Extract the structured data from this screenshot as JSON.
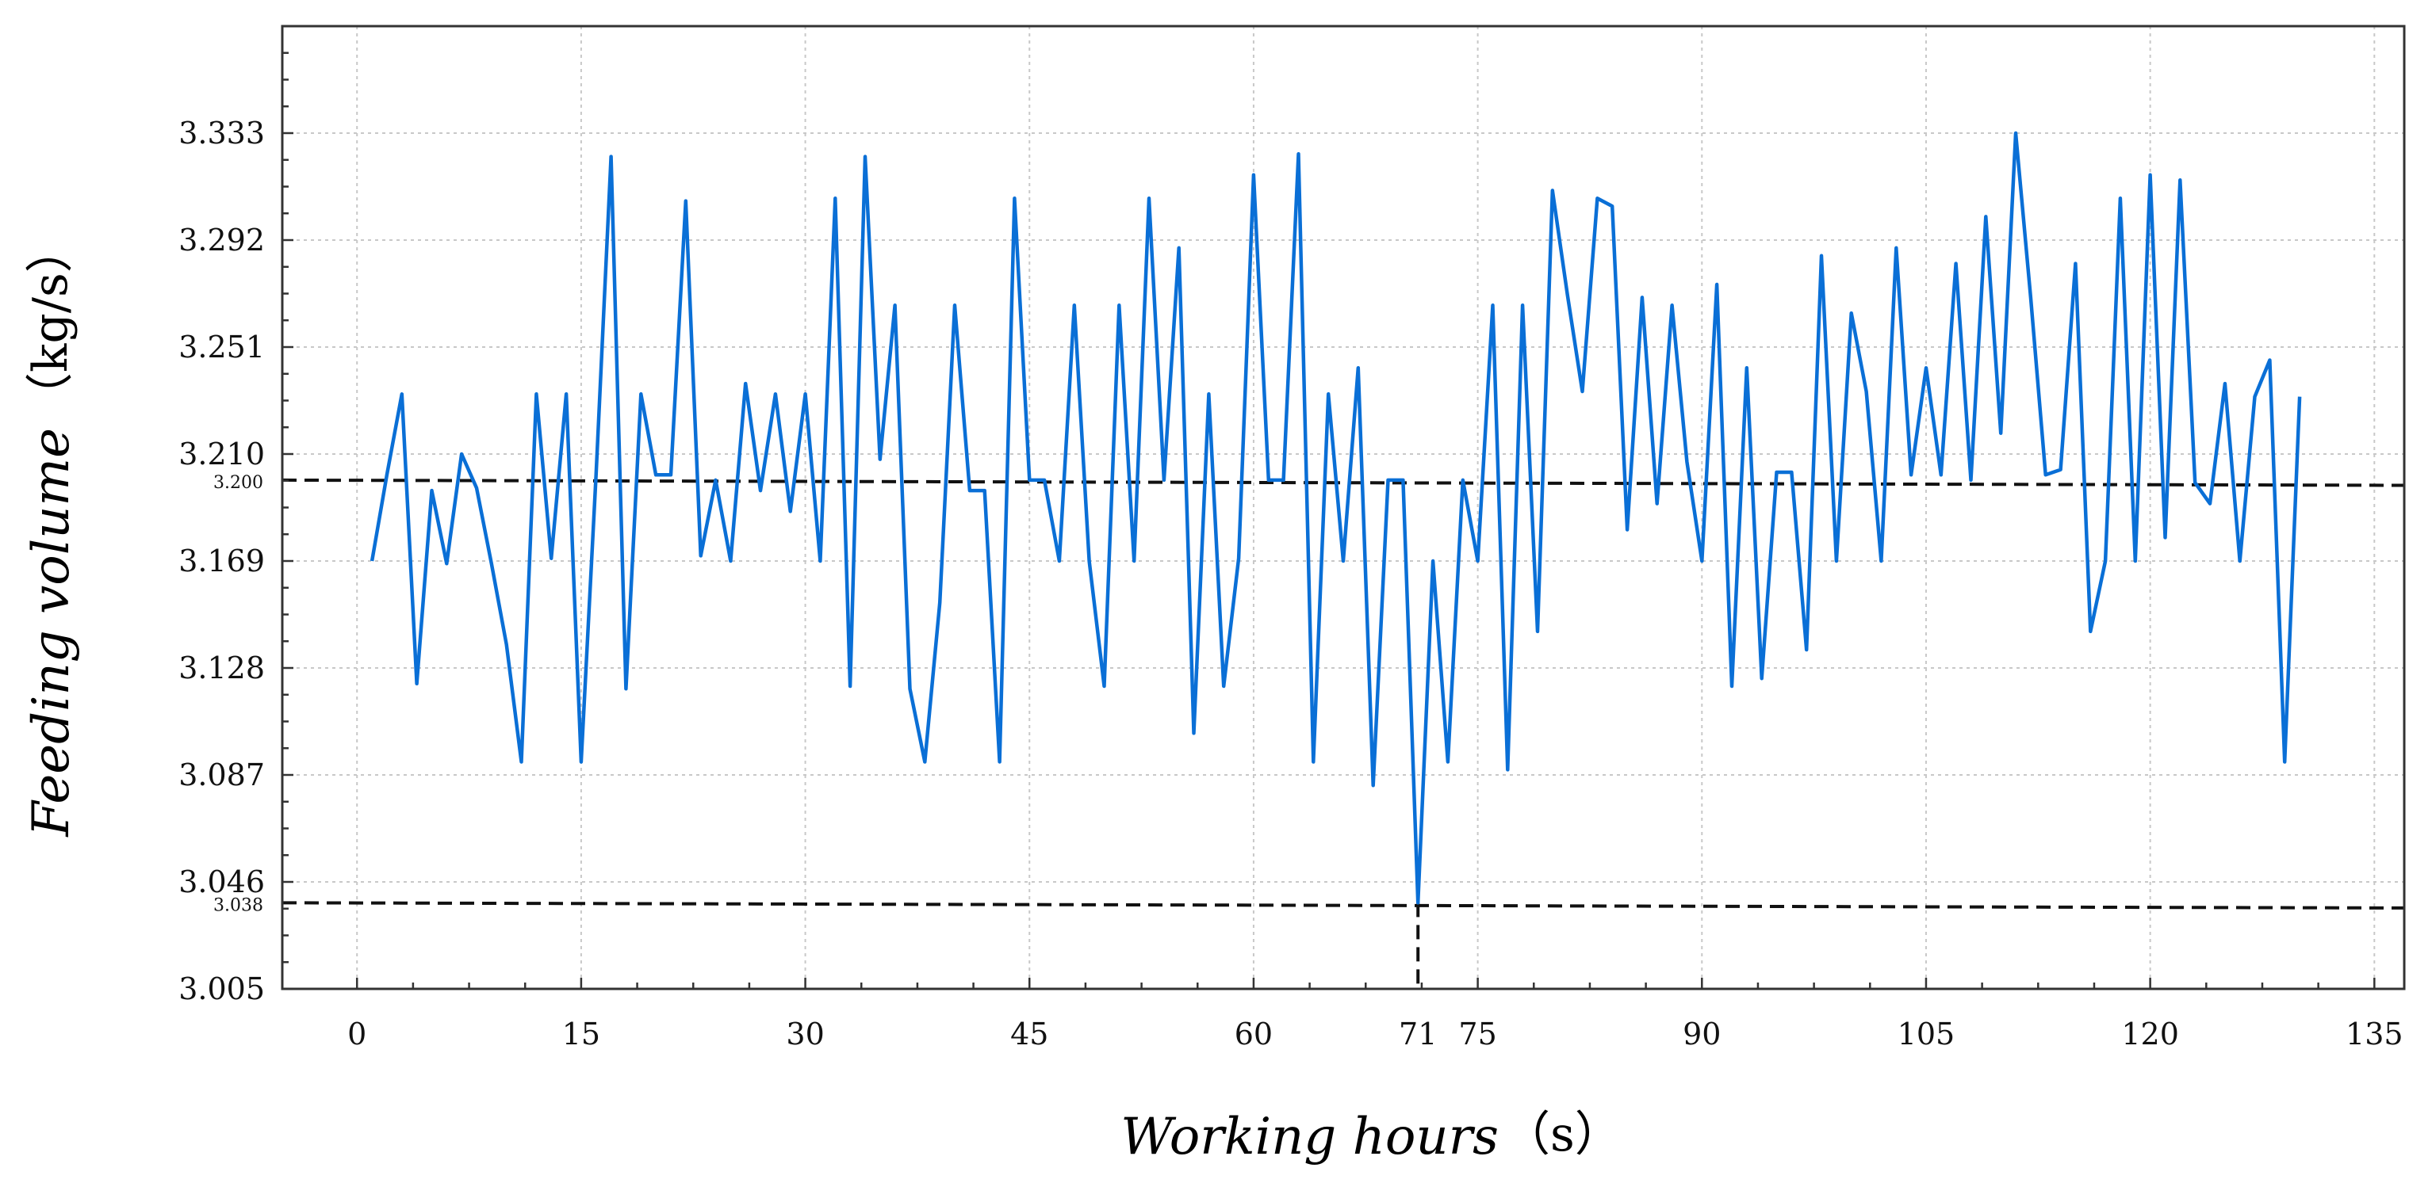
{
  "chart_data": {
    "type": "line",
    "title": "",
    "xlabel": "Working hours",
    "xlabel_unit": "（s）",
    "ylabel": "Feeding volume",
    "ylabel_unit": "（kg/s）",
    "xlim": [
      -5,
      137
    ],
    "ylim": [
      3.005,
      3.374
    ],
    "x_ticks": [
      0,
      15,
      30,
      45,
      60,
      71,
      75,
      90,
      105,
      120,
      135
    ],
    "y_ticks": [
      3.005,
      3.046,
      3.087,
      3.128,
      3.169,
      3.21,
      3.251,
      3.292,
      3.333
    ],
    "y_tick_labels": [
      "3.005",
      "3.046",
      "3.087",
      "3.128",
      "3.169",
      "3.210",
      "3.251",
      "3.292",
      "3.333"
    ],
    "grid": true,
    "color": "#0a6fd6",
    "reference_lines": [
      {
        "axis": "y",
        "value": 3.2,
        "label": "3.200",
        "end_value": 3.198
      },
      {
        "axis": "y",
        "value": 3.038,
        "label": "3.038",
        "end_value": 3.036
      },
      {
        "axis": "x",
        "value": 71,
        "from_y": 3.005,
        "to_y": 3.038
      }
    ],
    "series": [
      {
        "x": [
          1,
          2,
          3,
          4,
          5,
          6,
          7,
          8,
          9,
          10,
          11,
          12,
          13,
          14,
          15,
          16,
          17,
          18,
          19,
          20,
          21,
          22,
          23,
          24,
          25,
          26,
          27,
          28,
          29,
          30,
          31,
          32,
          33,
          34,
          35,
          36,
          37,
          38,
          39,
          40,
          41,
          42,
          43,
          44,
          45,
          46,
          47,
          48,
          49,
          50,
          51,
          52,
          53,
          54,
          55,
          56,
          57,
          58,
          59,
          60,
          61,
          62,
          63,
          64,
          65,
          66,
          67,
          68,
          69,
          70,
          71,
          72,
          73,
          74,
          75,
          76,
          77,
          78,
          79,
          80,
          81,
          82,
          83,
          84,
          85,
          86,
          87,
          88,
          89,
          90,
          91,
          92,
          93,
          94,
          95,
          96,
          97,
          98,
          99,
          100,
          101,
          102,
          103,
          104,
          105,
          106,
          107,
          108,
          109,
          110,
          111,
          112,
          113,
          114,
          115,
          116,
          117,
          118,
          119,
          120,
          121,
          122,
          123,
          124,
          125,
          126,
          127,
          128,
          129,
          130
        ],
        "values": [
          3.169,
          3.202,
          3.233,
          3.122,
          3.196,
          3.168,
          3.21,
          3.197,
          3.168,
          3.137,
          3.092,
          3.233,
          3.17,
          3.233,
          3.092,
          3.202,
          3.324,
          3.12,
          3.233,
          3.202,
          3.202,
          3.307,
          3.171,
          3.2,
          3.169,
          3.237,
          3.196,
          3.233,
          3.188,
          3.233,
          3.169,
          3.308,
          3.121,
          3.324,
          3.208,
          3.267,
          3.12,
          3.092,
          3.153,
          3.267,
          3.196,
          3.196,
          3.092,
          3.308,
          3.2,
          3.2,
          3.169,
          3.267,
          3.169,
          3.121,
          3.267,
          3.169,
          3.308,
          3.2,
          3.289,
          3.103,
          3.233,
          3.121,
          3.17,
          3.317,
          3.2,
          3.2,
          3.325,
          3.092,
          3.233,
          3.169,
          3.243,
          3.083,
          3.2,
          3.2,
          3.038,
          3.169,
          3.092,
          3.2,
          3.169,
          3.267,
          3.089,
          3.267,
          3.142,
          3.311,
          3.271,
          3.234,
          3.308,
          3.305,
          3.181,
          3.27,
          3.191,
          3.267,
          3.207,
          3.169,
          3.275,
          3.121,
          3.243,
          3.124,
          3.203,
          3.203,
          3.135,
          3.286,
          3.169,
          3.264,
          3.234,
          3.169,
          3.289,
          3.202,
          3.243,
          3.202,
          3.283,
          3.2,
          3.301,
          3.218,
          3.333,
          3.27,
          3.202,
          3.204,
          3.283,
          3.142,
          3.169,
          3.308,
          3.169,
          3.317,
          3.178,
          3.315,
          3.199,
          3.191,
          3.237,
          3.169,
          3.232,
          3.246,
          3.092,
          3.232
        ]
      }
    ]
  }
}
